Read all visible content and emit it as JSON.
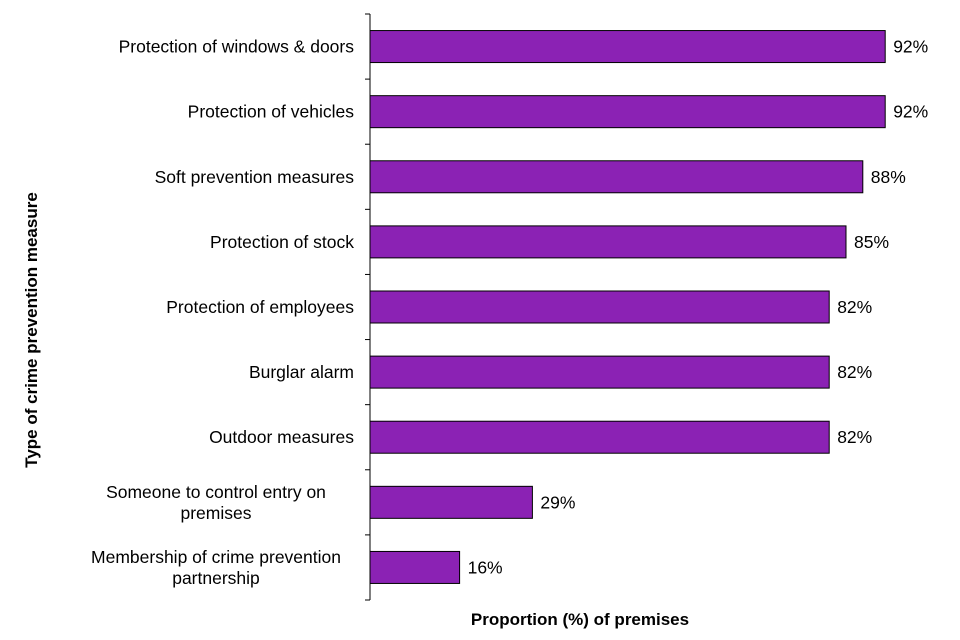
{
  "chart_data": {
    "type": "bar",
    "orientation": "horizontal",
    "categories": [
      "Protection of windows & doors",
      "Protection of vehicles",
      "Soft prevention measures",
      "Protection of stock",
      "Protection of employees",
      "Burglar alarm",
      "Outdoor measures",
      "Someone to control entry on premises",
      "Membership of crime prevention partnership"
    ],
    "category_lines": [
      [
        "Protection of windows & doors"
      ],
      [
        "Protection of vehicles"
      ],
      [
        "Soft prevention measures"
      ],
      [
        "Protection of stock"
      ],
      [
        "Protection of employees"
      ],
      [
        "Burglar alarm"
      ],
      [
        "Outdoor measures"
      ],
      [
        "Someone to control entry on",
        "premises"
      ],
      [
        "Membership of crime prevention",
        "partnership"
      ]
    ],
    "values": [
      92,
      92,
      88,
      85,
      82,
      82,
      82,
      29,
      16
    ],
    "value_labels": [
      "92%",
      "92%",
      "88%",
      "85%",
      "82%",
      "82%",
      "82%",
      "29%",
      "16%"
    ],
    "xlabel": "Proportion (%) of premises",
    "ylabel": "Type of crime prevention measure",
    "xlim": [
      0,
      100
    ],
    "grid": false,
    "legend": "none",
    "bar_color": "#8B22B4"
  }
}
